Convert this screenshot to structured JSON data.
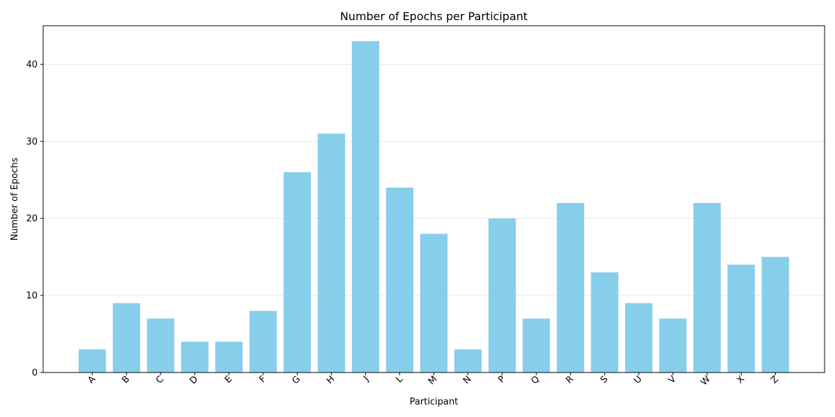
{
  "chart_data": {
    "type": "bar",
    "title": "Number of Epochs per Participant",
    "xlabel": "Participant",
    "ylabel": "Number of Epochs",
    "categories": [
      "A",
      "B",
      "C",
      "D",
      "E",
      "F",
      "G",
      "H",
      "J",
      "L",
      "M",
      "N",
      "P",
      "Q",
      "R",
      "S",
      "U",
      "V",
      "W",
      "X",
      "Z"
    ],
    "values": [
      3,
      9,
      7,
      4,
      4,
      8,
      26,
      31,
      43,
      24,
      18,
      3,
      20,
      7,
      22,
      13,
      9,
      7,
      22,
      14,
      15
    ],
    "ylim": [
      0,
      45
    ],
    "yticks": [
      0,
      10,
      20,
      30,
      40
    ],
    "grid": "y",
    "bar_color": "#87CEEB",
    "x_tick_rotation": 45
  }
}
